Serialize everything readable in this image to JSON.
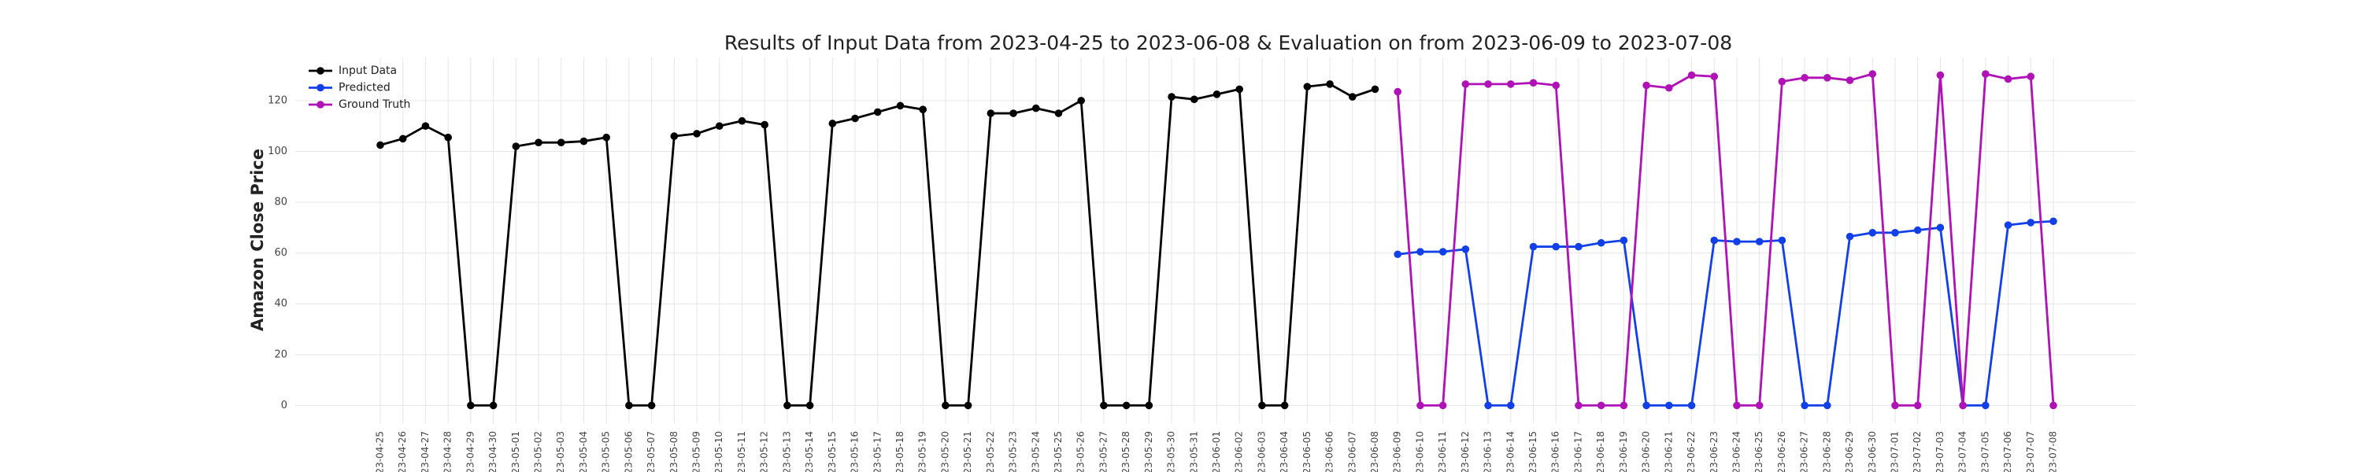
{
  "chart_data": {
    "type": "line",
    "title": "Results of Input Data from 2023-04-25 to 2023-06-08 & Evaluation on from 2023-06-09 to 2023-07-08",
    "y_label": "Amazon Close Price",
    "categories": [
      "2023-04-25",
      "2023-04-26",
      "2023-04-27",
      "2023-04-28",
      "2023-04-29",
      "2023-04-30",
      "2023-05-01",
      "2023-05-02",
      "2023-05-03",
      "2023-05-04",
      "2023-05-05",
      "2023-05-06",
      "2023-05-07",
      "2023-05-08",
      "2023-05-09",
      "2023-05-10",
      "2023-05-11",
      "2023-05-12",
      "2023-05-13",
      "2023-05-14",
      "2023-05-15",
      "2023-05-16",
      "2023-05-17",
      "2023-05-18",
      "2023-05-19",
      "2023-05-20",
      "2023-05-21",
      "2023-05-22",
      "2023-05-23",
      "2023-05-24",
      "2023-05-25",
      "2023-05-26",
      "2023-05-27",
      "2023-05-28",
      "2023-05-29",
      "2023-05-30",
      "2023-05-31",
      "2023-06-01",
      "2023-06-02",
      "2023-06-03",
      "2023-06-04",
      "2023-06-05",
      "2023-06-06",
      "2023-06-07",
      "2023-06-08",
      "2023-06-09",
      "2023-06-10",
      "2023-06-11",
      "2023-06-12",
      "2023-06-13",
      "2023-06-14",
      "2023-06-15",
      "2023-06-16",
      "2023-06-17",
      "2023-06-18",
      "2023-06-19",
      "2023-06-20",
      "2023-06-21",
      "2023-06-22",
      "2023-06-23",
      "2023-06-24",
      "2023-06-25",
      "2023-06-26",
      "2023-06-27",
      "2023-06-28",
      "2023-06-29",
      "2023-06-30",
      "2023-07-01",
      "2023-07-02",
      "2023-07-03",
      "2023-07-04",
      "2023-07-05",
      "2023-07-06",
      "2023-07-07",
      "2023-07-08"
    ],
    "series": [
      {
        "name": "Input Data",
        "color": "#000000",
        "values": [
          102.5,
          105,
          110,
          105.5,
          0,
          0,
          102,
          103.5,
          103.5,
          104,
          105.5,
          0,
          0,
          106,
          107,
          110,
          112,
          110.5,
          0,
          0,
          111,
          113,
          115.5,
          118,
          116.5,
          0,
          0,
          115,
          115,
          117,
          115,
          120,
          0,
          0,
          0,
          121.5,
          120.5,
          122.5,
          124.5,
          0,
          0,
          125.5,
          126.5,
          121.5,
          124.5,
          null,
          null,
          null,
          null,
          null,
          null,
          null,
          null,
          null,
          null,
          null,
          null,
          null,
          null,
          null,
          null,
          null,
          null,
          null,
          null,
          null,
          null,
          null,
          null,
          null,
          null,
          null,
          null,
          null,
          null
        ]
      },
      {
        "name": "Predicted",
        "color": "#1240e8",
        "values": [
          null,
          null,
          null,
          null,
          null,
          null,
          null,
          null,
          null,
          null,
          null,
          null,
          null,
          null,
          null,
          null,
          null,
          null,
          null,
          null,
          null,
          null,
          null,
          null,
          null,
          null,
          null,
          null,
          null,
          null,
          null,
          null,
          null,
          null,
          null,
          null,
          null,
          null,
          null,
          null,
          null,
          null,
          null,
          null,
          null,
          59.5,
          60.5,
          60.5,
          61.5,
          0,
          0,
          62.5,
          62.5,
          62.5,
          64,
          65,
          0,
          0,
          0,
          65,
          64.5,
          64.5,
          65,
          0,
          0,
          66.5,
          68,
          68,
          69,
          70,
          0,
          0,
          71,
          72,
          72.5
        ]
      },
      {
        "name": "Ground Truth",
        "color": "#b012b8",
        "values": [
          null,
          null,
          null,
          null,
          null,
          null,
          null,
          null,
          null,
          null,
          null,
          null,
          null,
          null,
          null,
          null,
          null,
          null,
          null,
          null,
          null,
          null,
          null,
          null,
          null,
          null,
          null,
          null,
          null,
          null,
          null,
          null,
          null,
          null,
          null,
          null,
          null,
          null,
          null,
          null,
          null,
          null,
          null,
          null,
          null,
          123.5,
          0,
          0,
          126.5,
          126.5,
          126.5,
          127,
          126,
          0,
          0,
          0,
          126,
          125,
          130,
          129.5,
          0,
          0,
          127.5,
          129,
          129,
          128,
          130.5,
          0,
          0,
          130,
          0,
          130.5,
          128.5,
          129.5,
          0
        ]
      }
    ],
    "ylim": [
      -7,
      137
    ],
    "yticks": [
      0,
      20,
      40,
      60,
      80,
      100,
      120
    ],
    "grid": true,
    "legend": "upper left"
  }
}
